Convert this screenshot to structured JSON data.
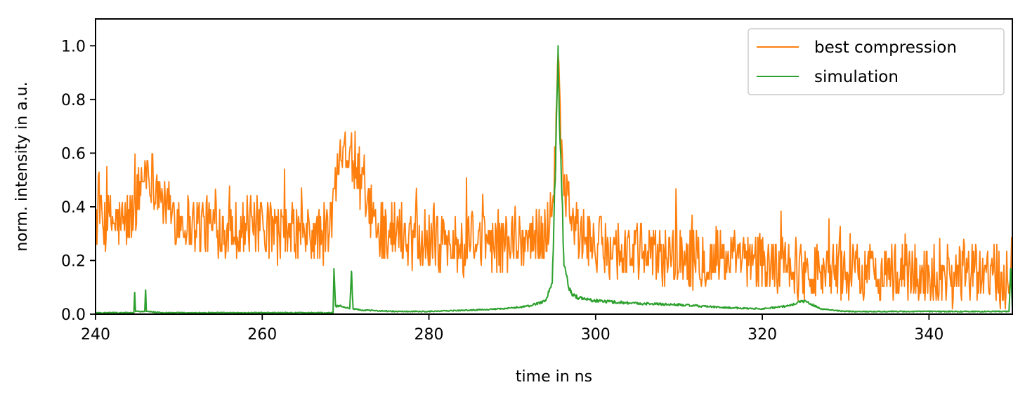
{
  "chart_data": {
    "type": "line",
    "title": "",
    "xlabel": "time in ns",
    "ylabel": "norm. intensity in a.u.",
    "xlim": [
      240,
      350
    ],
    "ylim": [
      0,
      1.1
    ],
    "xticks": [
      240,
      260,
      280,
      300,
      320,
      340
    ],
    "xtick_labels": [
      "240",
      "260",
      "280",
      "300",
      "320",
      "340"
    ],
    "yticks": [
      0.0,
      0.2,
      0.4,
      0.6,
      0.8,
      1.0
    ],
    "ytick_labels": [
      "0.0",
      "0.2",
      "0.4",
      "0.6",
      "0.8",
      "1.0"
    ],
    "grid": false,
    "legend_position": "top-right",
    "series": [
      {
        "name": "best compression",
        "color": "#ff7f0e",
        "x": [
          240,
          241,
          242,
          243,
          244,
          245,
          246,
          247,
          248,
          250,
          252,
          254,
          256,
          258,
          260,
          262,
          264,
          266,
          268,
          269,
          269.5,
          270,
          271,
          272,
          273,
          275,
          278,
          280,
          283,
          286,
          289,
          292,
          294,
          295,
          295.5,
          296,
          297,
          298,
          300,
          303,
          306,
          310,
          315,
          320,
          325,
          330,
          335,
          340,
          345,
          349,
          350
        ],
        "y": [
          0.36,
          0.34,
          0.35,
          0.33,
          0.35,
          0.42,
          0.55,
          0.5,
          0.42,
          0.36,
          0.34,
          0.33,
          0.32,
          0.33,
          0.32,
          0.3,
          0.3,
          0.29,
          0.3,
          0.52,
          0.68,
          0.63,
          0.55,
          0.48,
          0.34,
          0.31,
          0.3,
          0.28,
          0.26,
          0.26,
          0.27,
          0.28,
          0.3,
          0.45,
          0.9,
          0.55,
          0.38,
          0.3,
          0.26,
          0.24,
          0.22,
          0.22,
          0.2,
          0.19,
          0.17,
          0.16,
          0.16,
          0.15,
          0.15,
          0.15,
          0.2
        ]
      },
      {
        "name": "simulation",
        "color": "#2ca02c",
        "x": [
          240,
          244.6,
          244.7,
          244.8,
          245.2,
          245.9,
          246.0,
          246.1,
          248,
          255,
          262,
          268.5,
          268.6,
          268.8,
          269.5,
          270.5,
          270.7,
          270.9,
          272,
          276,
          280,
          285,
          289,
          292,
          294,
          294.8,
          295.2,
          295.5,
          295.8,
          296.2,
          297,
          298,
          300,
          305,
          310,
          315,
          320,
          323,
          325,
          327,
          330,
          340,
          349.6,
          349.8,
          350
        ],
        "y": [
          0.005,
          0.005,
          0.08,
          0.01,
          0.01,
          0.01,
          0.09,
          0.01,
          0.005,
          0.005,
          0.005,
          0.005,
          0.17,
          0.03,
          0.03,
          0.02,
          0.16,
          0.02,
          0.015,
          0.01,
          0.01,
          0.015,
          0.02,
          0.03,
          0.05,
          0.12,
          0.55,
          1.0,
          0.6,
          0.18,
          0.08,
          0.06,
          0.05,
          0.04,
          0.035,
          0.025,
          0.02,
          0.03,
          0.05,
          0.02,
          0.01,
          0.01,
          0.01,
          0.17,
          0.02
        ]
      }
    ]
  }
}
